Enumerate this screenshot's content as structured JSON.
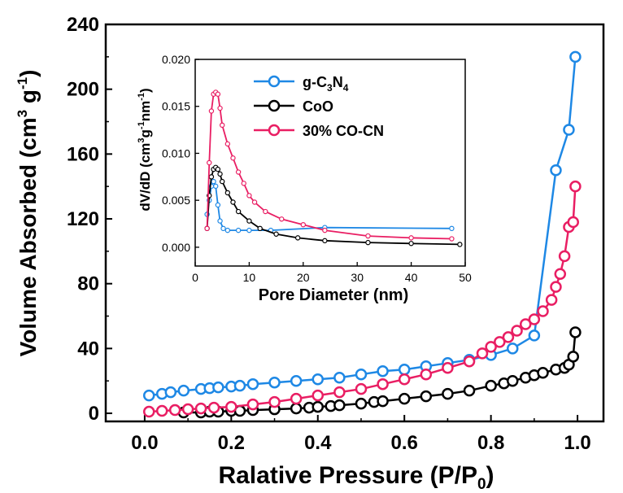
{
  "chart_data": [
    {
      "type": "line",
      "xlabel": "Ralative Pressure (P/P",
      "xlabel_sub": "0",
      "xlabel_end": ")",
      "ylabel": "Volume Absorbed (cm",
      "ylabel_sup1": "3",
      "ylabel_mid": " g",
      "ylabel_sup2": "-1",
      "ylabel_end": ")",
      "xlim": [
        -0.09,
        1.06
      ],
      "ylim": [
        -5,
        240
      ],
      "x_ticks": [
        0.0,
        0.2,
        0.4,
        0.6,
        0.8,
        1.0
      ],
      "x_tick_labels": [
        "0.0",
        "0.2",
        "0.4",
        "0.6",
        "0.8",
        "1.0"
      ],
      "y_ticks": [
        0,
        40,
        80,
        120,
        160,
        200,
        240
      ],
      "y_tick_labels": [
        "0",
        "40",
        "80",
        "120",
        "160",
        "200",
        "240"
      ],
      "series": [
        {
          "key": "gcn",
          "color": "#1e88e5",
          "x": [
            0.01,
            0.04,
            0.06,
            0.09,
            0.13,
            0.15,
            0.17,
            0.2,
            0.22,
            0.25,
            0.3,
            0.35,
            0.4,
            0.45,
            0.5,
            0.55,
            0.6,
            0.65,
            0.7,
            0.75,
            0.8,
            0.85,
            0.9,
            0.95,
            0.98,
            0.995
          ],
          "y": [
            11,
            12,
            13,
            14,
            15,
            15.5,
            16,
            16.5,
            17,
            18,
            19,
            20,
            21,
            22,
            24,
            26,
            27,
            29,
            31,
            33,
            36,
            40,
            48,
            150,
            175,
            220
          ]
        },
        {
          "key": "coo",
          "color": "#000000",
          "x": [
            0.09,
            0.13,
            0.15,
            0.17,
            0.2,
            0.22,
            0.25,
            0.3,
            0.35,
            0.38,
            0.4,
            0.43,
            0.45,
            0.5,
            0.53,
            0.55,
            0.6,
            0.65,
            0.7,
            0.75,
            0.8,
            0.83,
            0.85,
            0.88,
            0.9,
            0.92,
            0.95,
            0.97,
            0.98,
            0.99,
            0.995
          ],
          "y": [
            0.5,
            0.5,
            1,
            1,
            1.5,
            1.5,
            2,
            2.5,
            3,
            3.5,
            4,
            4.5,
            5,
            6,
            7,
            7.5,
            9,
            10.5,
            12,
            14,
            17,
            18.5,
            20,
            22,
            23.5,
            25,
            27,
            28,
            30,
            35,
            50
          ]
        },
        {
          "key": "cocn",
          "color": "#e91e63",
          "x": [
            0.01,
            0.04,
            0.07,
            0.1,
            0.13,
            0.16,
            0.2,
            0.25,
            0.3,
            0.35,
            0.4,
            0.45,
            0.5,
            0.55,
            0.6,
            0.65,
            0.7,
            0.75,
            0.78,
            0.8,
            0.82,
            0.84,
            0.86,
            0.88,
            0.9,
            0.92,
            0.94,
            0.95,
            0.96,
            0.97,
            0.98,
            0.99,
            0.995
          ],
          "y": [
            1,
            1.5,
            2,
            2.5,
            3,
            3.5,
            4,
            5.5,
            7,
            9,
            11,
            13,
            15,
            18,
            21,
            24,
            28,
            32,
            37,
            41,
            44,
            47,
            51,
            55,
            58,
            63,
            70,
            78,
            86,
            97,
            115,
            118,
            140
          ]
        }
      ]
    },
    {
      "type": "line",
      "xlabel": "Pore Diameter (nm)",
      "ylabel": "dV/dD (cm",
      "ylabel_sup1": "3",
      "ylabel_mid": "g",
      "ylabel_sup2": "-1",
      "ylabel_mid2": "nm",
      "ylabel_sup3": "-1",
      "ylabel_end": ")",
      "xlim": [
        0,
        50
      ],
      "ylim": [
        -0.002,
        0.02
      ],
      "x_ticks": [
        0,
        10,
        20,
        30,
        40,
        50
      ],
      "x_tick_labels": [
        "0",
        "10",
        "20",
        "30",
        "40",
        "50"
      ],
      "y_ticks": [
        0,
        0.005,
        0.01,
        0.015,
        0.02
      ],
      "y_tick_labels": [
        "0.000",
        "0.005",
        "0.010",
        "0.015",
        "0.020"
      ],
      "legend_position": "top-left",
      "series": [
        {
          "key": "gcn",
          "name_parts": [
            "g-C",
            "3",
            "N",
            "4"
          ],
          "color": "#1e88e5",
          "x": [
            2.2,
            2.6,
            3.0,
            3.4,
            3.8,
            4.2,
            4.6,
            5.2,
            6.0,
            8.0,
            10.0,
            14.0,
            24.0,
            47.5
          ],
          "y": [
            0.0035,
            0.005,
            0.0065,
            0.007,
            0.0065,
            0.0045,
            0.0028,
            0.002,
            0.0018,
            0.0018,
            0.0018,
            0.0018,
            0.0021,
            0.002
          ]
        },
        {
          "key": "coo",
          "name": "CoO",
          "color": "#000000",
          "x": [
            2.2,
            2.6,
            3.0,
            3.4,
            3.8,
            4.2,
            4.6,
            5.0,
            6.0,
            7.0,
            8.0,
            10.0,
            12.0,
            15.0,
            19.0,
            24.0,
            32.0,
            40.0,
            49.0
          ],
          "y": [
            0.002,
            0.0055,
            0.0075,
            0.0083,
            0.0085,
            0.0083,
            0.0078,
            0.007,
            0.0058,
            0.0048,
            0.0038,
            0.0028,
            0.002,
            0.0014,
            0.001,
            0.0007,
            0.0005,
            0.0004,
            0.0003
          ]
        },
        {
          "key": "cocn",
          "name": "30% CO-CN",
          "color": "#e91e63",
          "x": [
            2.2,
            2.6,
            3.0,
            3.4,
            3.8,
            4.2,
            4.6,
            5.0,
            6.0,
            7.0,
            8.0,
            9.0,
            10.0,
            11.0,
            13.0,
            16.0,
            20.0,
            24.0,
            32.0,
            40.0,
            47.5
          ],
          "y": [
            0.002,
            0.009,
            0.0145,
            0.0163,
            0.0165,
            0.0163,
            0.0148,
            0.013,
            0.011,
            0.0095,
            0.008,
            0.0068,
            0.0055,
            0.0048,
            0.0038,
            0.003,
            0.0024,
            0.0018,
            0.0012,
            0.001,
            0.0009
          ]
        }
      ]
    }
  ]
}
